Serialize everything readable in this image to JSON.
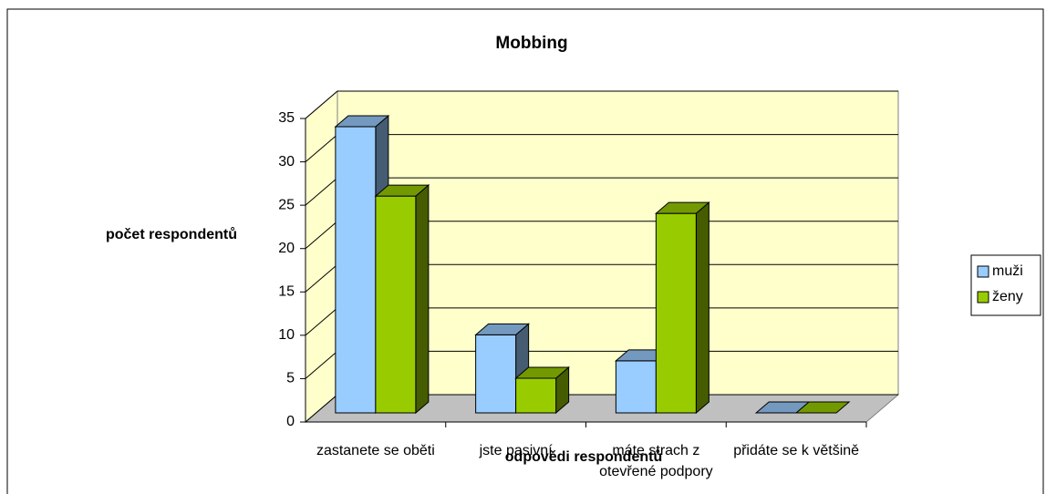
{
  "chart_data": {
    "type": "bar3d",
    "title": "Mobbing",
    "y_label": "počet respondentů",
    "x_label": "odpovědi respondentů",
    "categories": [
      "zastanete se oběti",
      "jste pasivní",
      "máte strach z otevřené podpory",
      "přidáte se k většině"
    ],
    "series": [
      {
        "name": "muži",
        "color": "#99ccff",
        "values": [
          33,
          9,
          6,
          0
        ]
      },
      {
        "name": "ženy",
        "color": "#99cc00",
        "values": [
          25,
          4,
          23,
          0
        ]
      }
    ],
    "ylim": [
      0,
      35
    ],
    "yticks": [
      0,
      5,
      10,
      15,
      20,
      25,
      30,
      35
    ],
    "grid": true,
    "legend": "right"
  }
}
